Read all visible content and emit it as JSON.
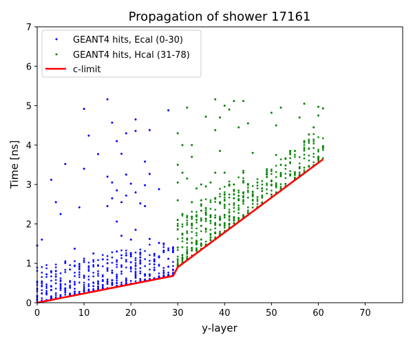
{
  "chart_data": {
    "type": "scatter",
    "title": "Propagation of shower 17161",
    "xlabel": "y-layer",
    "ylabel": "Time [ns]",
    "xlim": [
      0,
      78
    ],
    "ylim": [
      0,
      7
    ],
    "xticks": [
      0,
      10,
      20,
      30,
      40,
      50,
      60,
      70
    ],
    "yticks": [
      0,
      1,
      2,
      3,
      4,
      5,
      6,
      7
    ],
    "grid": false,
    "legend_position": "top-left",
    "series": [
      {
        "name": "GEANT4 hits, Ecal (0-30)",
        "kind": "scatter",
        "color": "#0000ff",
        "points": [
          [
            0,
            1.45
          ],
          [
            1,
            1.6
          ],
          [
            2,
            0.72
          ],
          [
            3,
            3.12
          ],
          [
            3,
            0.8
          ],
          [
            4,
            2.55
          ],
          [
            5,
            2.25
          ],
          [
            6,
            3.52
          ],
          [
            8,
            1.37
          ],
          [
            9,
            2.42
          ],
          [
            10,
            4.92
          ],
          [
            10,
            3.4
          ],
          [
            11,
            4.24
          ],
          [
            12,
            1.25
          ],
          [
            13,
            3.77
          ],
          [
            13,
            0.95
          ],
          [
            14,
            1.1
          ],
          [
            15,
            5.16
          ],
          [
            15,
            3.2
          ],
          [
            15,
            2.45
          ],
          [
            16,
            4.57
          ],
          [
            16,
            3.05
          ],
          [
            16,
            2.65
          ],
          [
            17,
            4.1
          ],
          [
            17,
            2.85
          ],
          [
            17,
            2.06
          ],
          [
            17,
            1.3
          ],
          [
            18,
            3.78
          ],
          [
            18,
            2.55
          ],
          [
            18,
            1.7
          ],
          [
            19,
            4.3
          ],
          [
            19,
            3.25
          ],
          [
            19,
            2.72
          ],
          [
            19,
            1.2
          ],
          [
            20,
            3.02
          ],
          [
            20,
            1.6
          ],
          [
            21,
            4.65
          ],
          [
            21,
            4.36
          ],
          [
            21,
            2.8
          ],
          [
            21,
            1.85
          ],
          [
            22,
            2.52
          ],
          [
            22,
            1.15
          ],
          [
            23,
            3.58
          ],
          [
            23,
            2.98
          ],
          [
            23,
            2.45
          ],
          [
            24,
            4.38
          ],
          [
            24,
            3.27
          ],
          [
            24,
            1.62
          ],
          [
            25,
            1.24
          ],
          [
            26,
            2.88
          ],
          [
            26,
            1.15
          ],
          [
            27,
            1.32
          ],
          [
            28,
            4.88
          ],
          [
            28,
            1.33
          ],
          [
            29,
            1.3
          ]
        ]
      },
      {
        "name": "GEANT4 hits, Hcal (31-78)",
        "kind": "scatter",
        "color": "#008000",
        "points": [
          [
            30,
            4.3
          ],
          [
            30,
            3.5
          ],
          [
            30,
            3.05
          ],
          [
            30,
            2.6
          ],
          [
            30,
            2.1
          ],
          [
            30,
            1.95
          ],
          [
            30,
            1.4
          ],
          [
            31,
            4.0
          ],
          [
            31,
            3.3
          ],
          [
            31,
            2.25
          ],
          [
            31,
            1.75
          ],
          [
            32,
            4.95
          ],
          [
            32,
            3.15
          ],
          [
            32,
            2.2
          ],
          [
            32,
            1.6
          ],
          [
            33,
            4.0
          ],
          [
            33,
            3.7
          ],
          [
            33,
            2.55
          ],
          [
            33,
            2.0
          ],
          [
            34,
            2.9
          ],
          [
            34,
            2.1
          ],
          [
            34,
            1.55
          ],
          [
            35,
            3.0
          ],
          [
            35,
            2.6
          ],
          [
            35,
            1.95
          ],
          [
            36,
            4.72
          ],
          [
            36,
            2.95
          ],
          [
            36,
            2.4
          ],
          [
            37,
            3.05
          ],
          [
            37,
            2.2
          ],
          [
            38,
            5.16
          ],
          [
            38,
            4.38
          ],
          [
            38,
            3.3
          ],
          [
            38,
            2.65
          ],
          [
            39,
            4.7
          ],
          [
            39,
            3.85
          ],
          [
            39,
            2.55
          ],
          [
            40,
            5.0
          ],
          [
            40,
            3.3
          ],
          [
            40,
            2.75
          ],
          [
            41,
            4.9
          ],
          [
            41,
            3.0
          ],
          [
            41,
            2.2
          ],
          [
            42,
            5.12
          ],
          [
            42,
            3.0
          ],
          [
            42,
            2.65
          ],
          [
            43,
            4.45
          ],
          [
            43,
            2.6
          ],
          [
            44,
            5.12
          ],
          [
            44,
            3.3
          ],
          [
            44,
            2.8
          ],
          [
            45,
            4.55
          ],
          [
            45,
            3.0
          ],
          [
            46,
            3.8
          ],
          [
            46,
            2.7
          ],
          [
            47,
            3.05
          ],
          [
            48,
            2.9
          ],
          [
            49,
            3.25
          ],
          [
            50,
            4.82
          ],
          [
            50,
            3.1
          ],
          [
            51,
            4.5
          ],
          [
            51,
            3.75
          ],
          [
            52,
            3.5
          ],
          [
            52,
            4.95
          ],
          [
            53,
            3.65
          ],
          [
            54,
            3.85
          ],
          [
            55,
            3.85
          ],
          [
            56,
            4.7
          ],
          [
            57,
            5.05
          ],
          [
            57,
            4.1
          ],
          [
            58,
            4.27
          ],
          [
            59,
            4.45
          ],
          [
            60,
            4.97
          ],
          [
            60,
            4.75
          ],
          [
            61,
            4.93
          ]
        ]
      },
      {
        "name": "c-limit",
        "kind": "line",
        "color": "#ff0000",
        "points": [
          [
            0,
            0.0
          ],
          [
            29,
            0.68
          ],
          [
            30,
            0.9
          ],
          [
            61,
            3.64
          ]
        ]
      }
    ]
  }
}
